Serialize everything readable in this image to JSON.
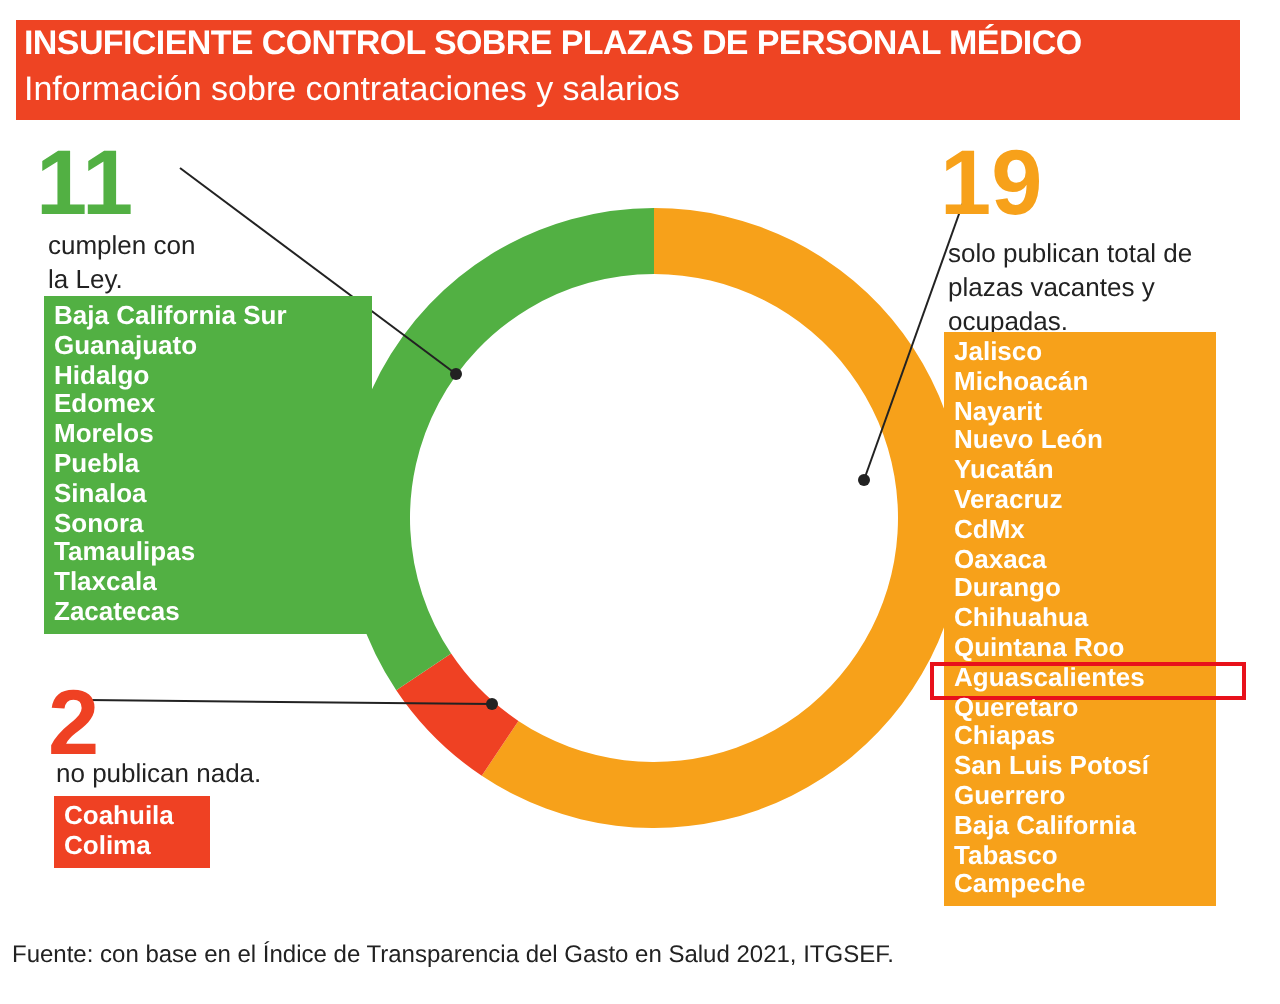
{
  "chart_data": {
    "type": "donut",
    "title": "INSUFICIENTE CONTROL SOBRE PLAZAS DE PERSONAL MÉDICO",
    "subtitle": "Información sobre contrataciones y salarios",
    "categories": [
      "solo publican total de plazas vacantes y ocupadas.",
      "no publican nada.",
      "cumplen con la Ley."
    ],
    "values": [
      19,
      2,
      11
    ],
    "colors": [
      "#f7a11a",
      "#ef4123",
      "#52b043"
    ],
    "data_labels": true,
    "annotations": [
      "Jalisco",
      "Michoacán",
      "Nayarit",
      "Nuevo León",
      "Yucatán",
      "Veracruz",
      "CdMx",
      "Oaxaca",
      "Durango",
      "Chihuahua",
      "Quintana Roo",
      "Aguascalientes",
      "Queretaro",
      "Chiapas",
      "San Luis Potosí",
      "Guerrero",
      "Baja California",
      "Tabasco",
      "Campeche",
      "Coahuila",
      "Colima",
      "Baja California Sur",
      "Guanajuato",
      "Hidalgo",
      "Edomex",
      "Morelos",
      "Puebla",
      "Sinaloa",
      "Sonora",
      "Tamaulipas",
      "Tlaxcala",
      "Zacatecas",
      "Fuente: con base en el Índice de Transparencia del Gasto en Salud 2021, ITGSEF."
    ]
  }
}
